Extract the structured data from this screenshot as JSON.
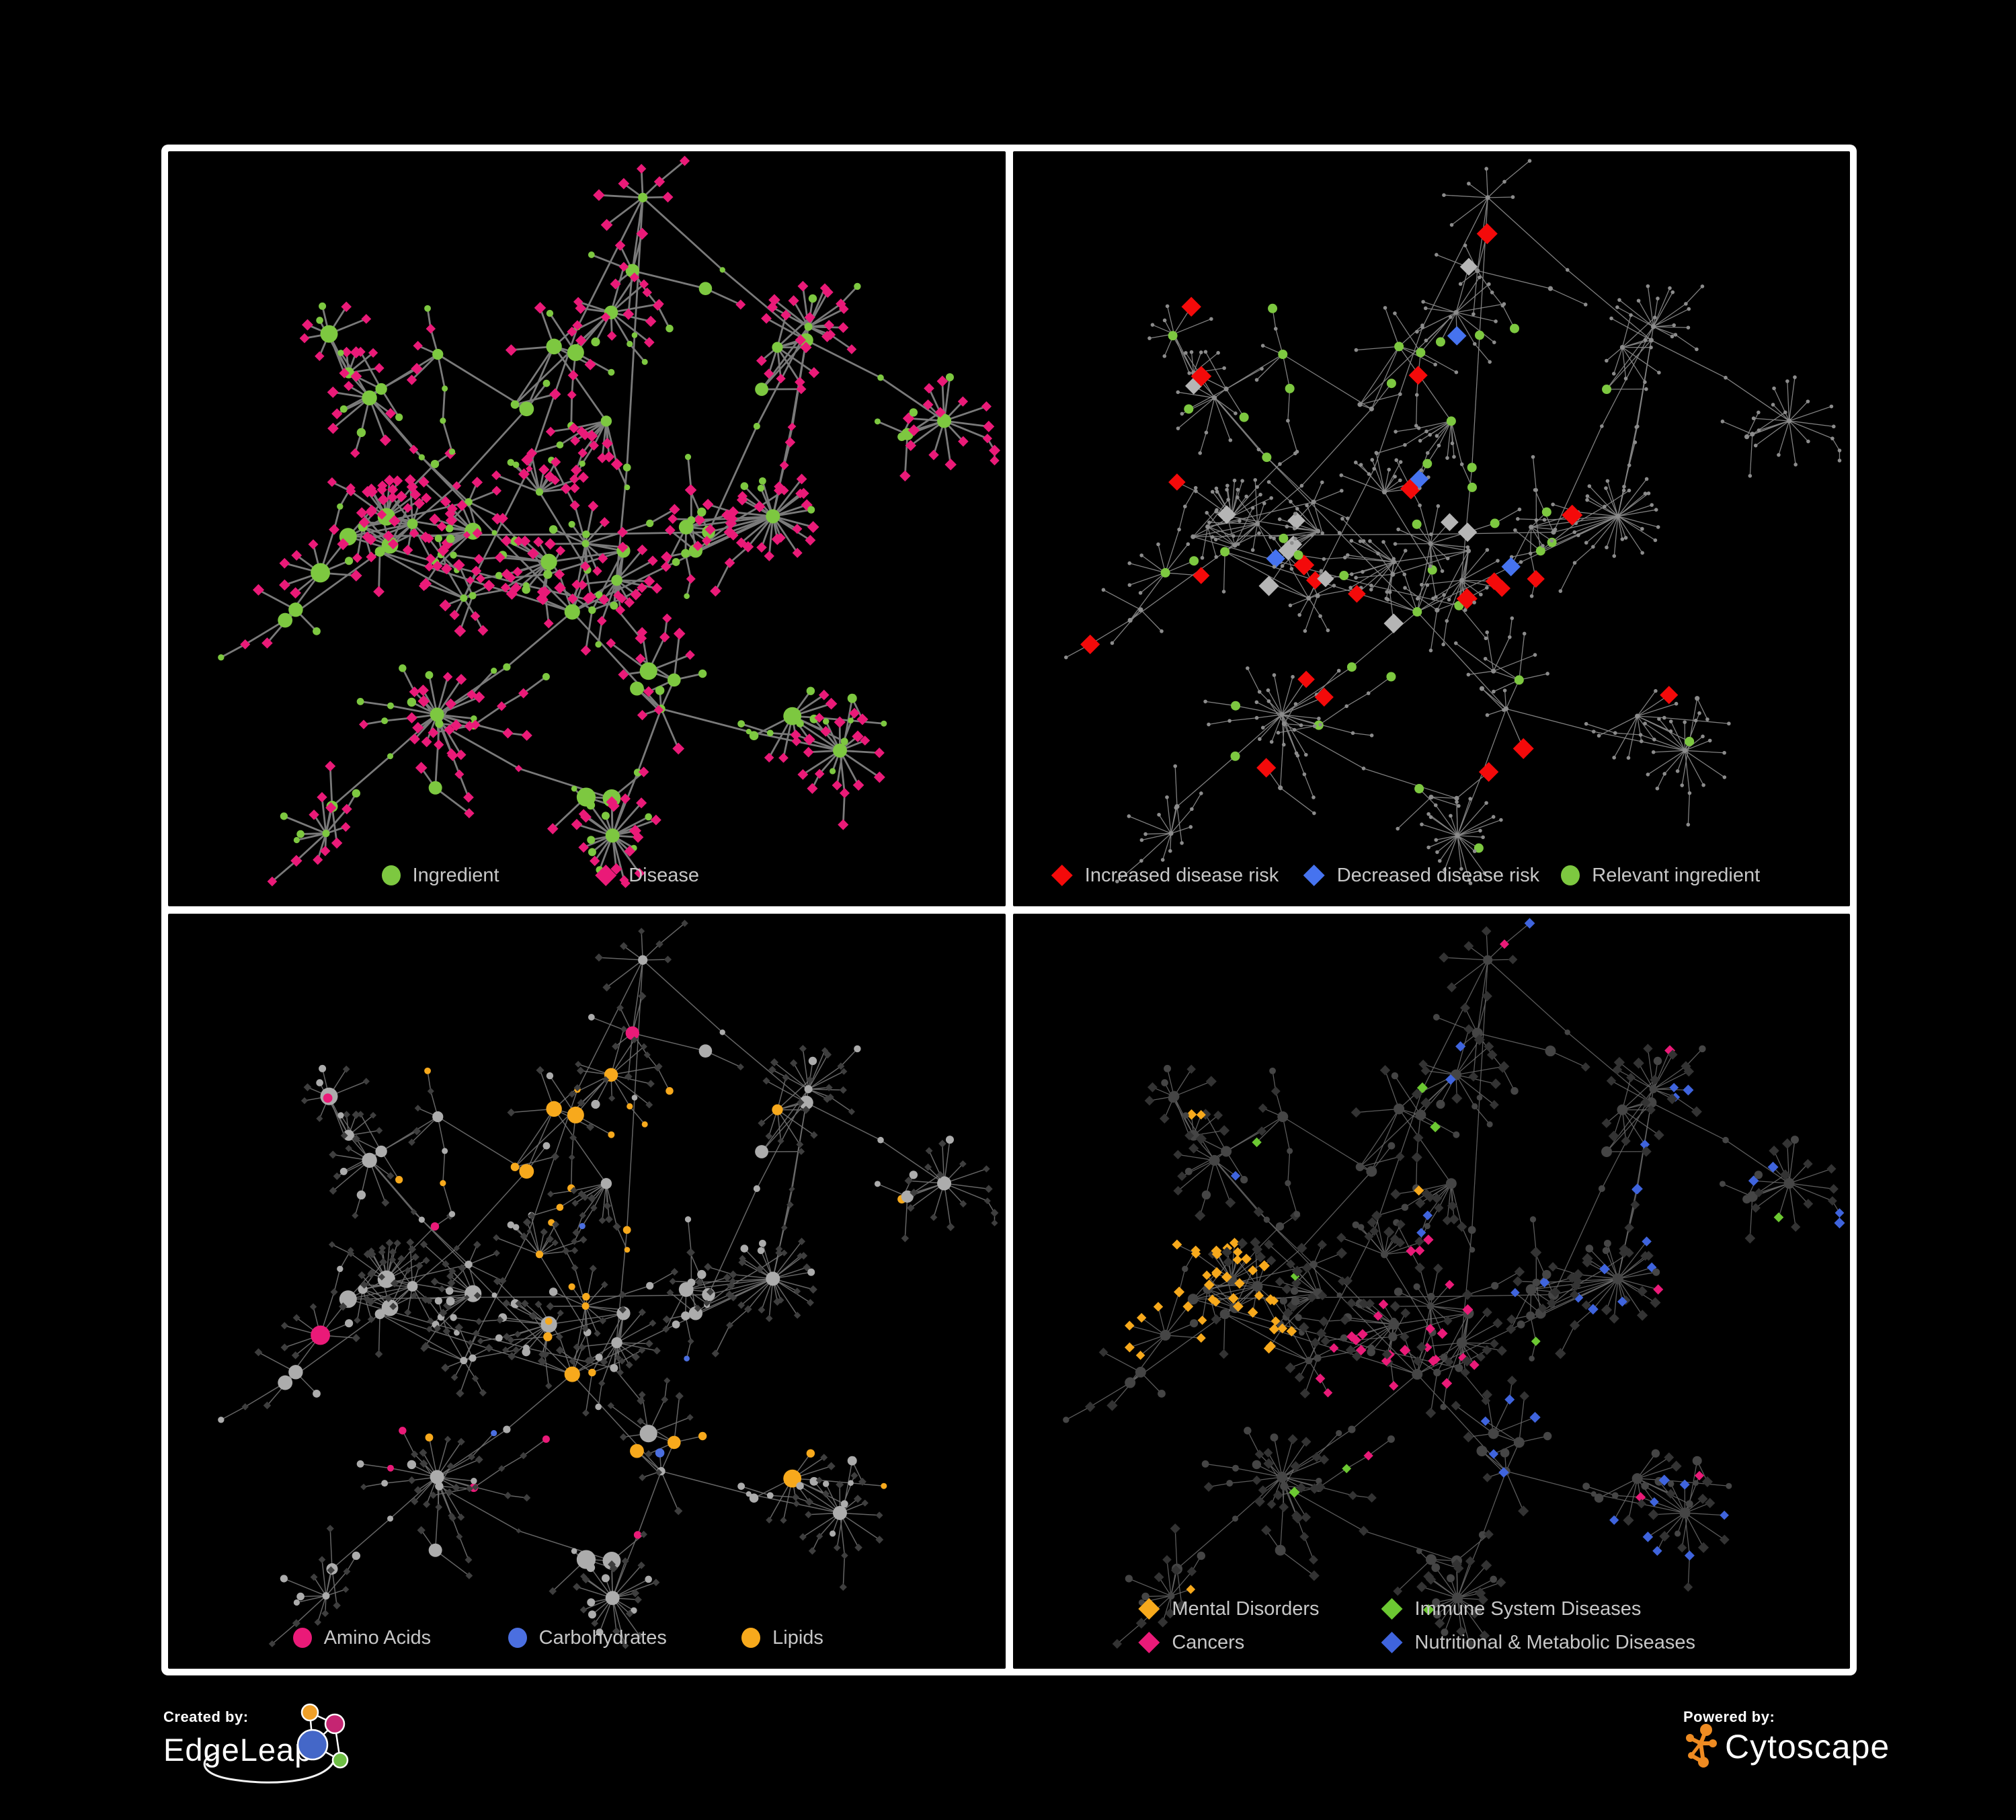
{
  "page": {
    "background": "#000000",
    "frame_color": "#FFFFFF",
    "legend_text_color": "#C7C7C7"
  },
  "network": {
    "seed": 7,
    "node_total_approx": 580,
    "hub_count_approx": 64,
    "panel_count": 4
  },
  "panels": [
    {
      "id": "ingredient-disease",
      "position": "top-left",
      "legend": [
        {
          "label": "Ingredient",
          "shape": "circle",
          "color": "#7DC840"
        },
        {
          "label": "Disease",
          "shape": "diamond",
          "color": "#EA1A78"
        }
      ],
      "style": {
        "edge_color": "#7A7A7A",
        "edge_width": 2.8,
        "edge_opacity": 1,
        "circle_color": "#7DC840",
        "diamond_color": "#EA1A78"
      }
    },
    {
      "id": "disease-risk",
      "position": "top-right",
      "legend": [
        {
          "label": "Increased disease risk",
          "shape": "diamond",
          "color": "#F40A0A"
        },
        {
          "label": "Decreased disease risk",
          "shape": "diamond",
          "color": "#4673EF"
        },
        {
          "label": "Relevant ingredient",
          "shape": "circle",
          "color": "#7DC840"
        }
      ],
      "style": {
        "edge_color": "#868686",
        "edge_width": 1.3,
        "edge_opacity": 0.95,
        "base_node_color": "#8C8C8C",
        "increased_color": "#F40A0A",
        "decreased_color": "#4673EF",
        "neutral_color": "#B5B5B5",
        "ingredient_color": "#7DC840"
      }
    },
    {
      "id": "ingredient-classes",
      "position": "bottom-left",
      "legend": [
        {
          "label": "Amino Acids",
          "shape": "circle",
          "color": "#EA1A78"
        },
        {
          "label": "Carbohydrates",
          "shape": "circle",
          "color": "#4B6FE0"
        },
        {
          "label": "Lipids",
          "shape": "circle",
          "color": "#F7A91C"
        }
      ],
      "style": {
        "edge_color": "#707070",
        "edge_width": 1.5,
        "edge_opacity": 0.9,
        "circle_base_color": "#ACACAC",
        "diamond_color": "#3E3E3E",
        "amino_color": "#EA1A78",
        "carb_color": "#4B6FE0",
        "lipid_color": "#F7A91C"
      }
    },
    {
      "id": "disease-categories",
      "position": "bottom-right",
      "legend": [
        {
          "label": "Mental Disorders",
          "shape": "diamond",
          "color": "#F7A91C"
        },
        {
          "label": "Immune System Diseases",
          "shape": "diamond",
          "color": "#6CC832"
        },
        {
          "label": "Cancers",
          "shape": "diamond",
          "color": "#EA1A78"
        },
        {
          "label": "Nutritional & Metabolic Diseases",
          "shape": "diamond",
          "color": "#3F64DD"
        }
      ],
      "style": {
        "edge_color": "#6A6A6A",
        "edge_width": 1.3,
        "edge_opacity": 0.85,
        "circle_color": "#454545",
        "diamond_base_color": "#333333",
        "mental_color": "#F7A91C",
        "immune_color": "#6CC832",
        "cancer_color": "#EA1A78",
        "metabolic_color": "#3F64DD"
      }
    }
  ],
  "footer": {
    "created_by_label": "Created by:",
    "edgeleap_name": "EdgeLeap",
    "powered_by_label": "Powered by:",
    "cytoscape_name": "Cytoscape",
    "edgeleap_logo_colors": {
      "orange": "#F0A028",
      "magenta": "#C52572",
      "blue": "#4467C8",
      "green": "#6EBE45"
    },
    "cytoscape_logo_color": "#EE8B22"
  }
}
